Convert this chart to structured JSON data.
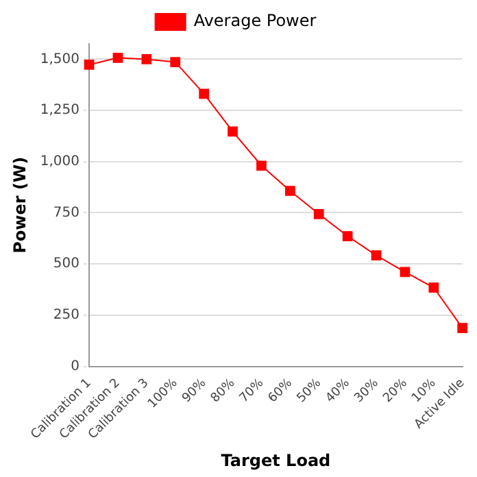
{
  "chart_data": {
    "type": "line",
    "xlabel": "Target Load",
    "ylabel": "Power (W)",
    "categories": [
      "Calibration 1",
      "Calibration 2",
      "Calibration 3",
      "100%",
      "90%",
      "80%",
      "70%",
      "60%",
      "50%",
      "40%",
      "30%",
      "20%",
      "10%",
      "Active Idle"
    ],
    "series": [
      {
        "name": "Average Power",
        "color": "#ff0000",
        "values": [
          1473,
          1507,
          1500,
          1486,
          1331,
          1147,
          980,
          857,
          744,
          636,
          542,
          461,
          385,
          187
        ]
      }
    ],
    "ylim": [
      0,
      1575
    ],
    "yticks": [
      {
        "value": 0,
        "label": "0"
      },
      {
        "value": 250,
        "label": "250"
      },
      {
        "value": 500,
        "label": "500"
      },
      {
        "value": 750,
        "label": "750"
      },
      {
        "value": 1000,
        "label": "1,000"
      },
      {
        "value": 1250,
        "label": "1,250"
      },
      {
        "value": 1500,
        "label": "1,500"
      }
    ],
    "grid": "y",
    "legend": "top",
    "marker": "square",
    "line_style": "solid"
  }
}
